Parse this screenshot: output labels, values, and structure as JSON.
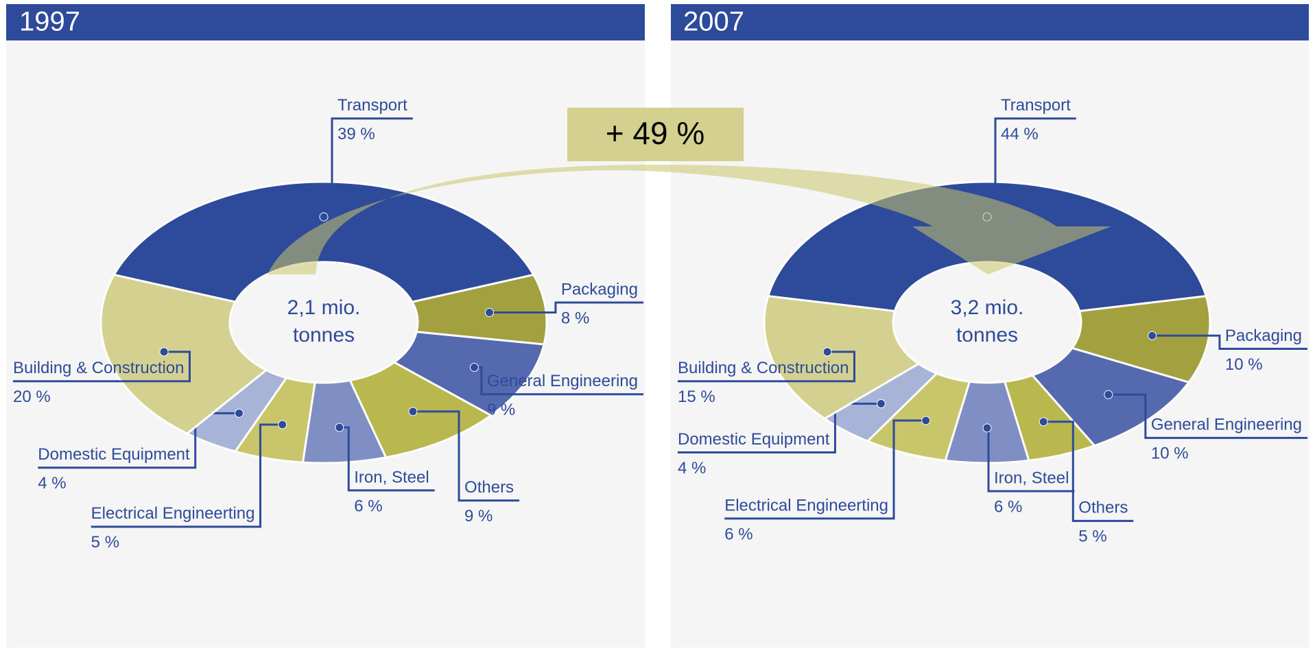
{
  "annotation": "+ 49 %",
  "chart_data": [
    {
      "type": "pie",
      "title": "1997",
      "center_label": "2,1 mio. tonnes",
      "categories": [
        "Transport",
        "Packaging",
        "General Engineering",
        "Others",
        "Iron, Steel",
        "Electrical Engineerting",
        "Domestic Equipment",
        "Building & Construction"
      ],
      "values": [
        39,
        8,
        9,
        9,
        6,
        5,
        4,
        20
      ],
      "value_labels": [
        "39 %",
        "8 %",
        "9 %",
        "9 %",
        "6 %",
        "5 %",
        "4 %",
        "20 %"
      ],
      "colors": [
        "#2e4a9a",
        "#a3a040",
        "#5569ae",
        "#b8b84e",
        "#7f8fc4",
        "#c8c56a",
        "#a8b3d8",
        "#d4d190"
      ]
    },
    {
      "type": "pie",
      "title": "2007",
      "center_label": "3,2 mio. tonnes",
      "categories": [
        "Transport",
        "Packaging",
        "General Engineering",
        "Others",
        "Iron, Steel",
        "Electrical Engineerting",
        "Domestic Equipment",
        "Building & Construction"
      ],
      "values": [
        44,
        10,
        10,
        5,
        6,
        6,
        4,
        15
      ],
      "value_labels": [
        "44 %",
        "10 %",
        "10 %",
        "5 %",
        "6 %",
        "6 %",
        "4 %",
        "15 %"
      ],
      "colors": [
        "#2e4a9a",
        "#a3a040",
        "#5569ae",
        "#b8b84e",
        "#7f8fc4",
        "#c8c56a",
        "#a8b3d8",
        "#d4d190"
      ]
    }
  ]
}
